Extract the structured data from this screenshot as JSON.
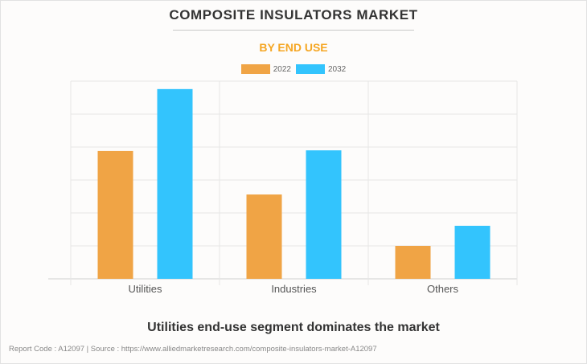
{
  "chart_data": {
    "type": "bar",
    "title": "COMPOSITE INSULATORS MARKET",
    "subtitle": "BY END USE",
    "xlabel": "",
    "ylabel": "",
    "categories": [
      "Utilities",
      "Industries",
      "Others"
    ],
    "series": [
      {
        "name": "2022",
        "color": "#f0a445",
        "values": [
          3.88,
          2.56,
          1.0
        ]
      },
      {
        "name": "2032",
        "color": "#33c4fd",
        "values": [
          5.76,
          3.9,
          1.61
        ]
      }
    ],
    "ylim": [
      0,
      6
    ],
    "y_ticks_labeled": false,
    "grid": true,
    "legend_position": "top-center",
    "caption": "Utilities end-use segment dominates the market"
  },
  "footer": {
    "text": "Report Code : A12097  |  Source : https://www.alliedmarketresearch.com/composite-insulators-market-A12097"
  },
  "colors": {
    "title": "#333333",
    "subtitle": "#f5a623",
    "grid": "#e3e3e3"
  }
}
